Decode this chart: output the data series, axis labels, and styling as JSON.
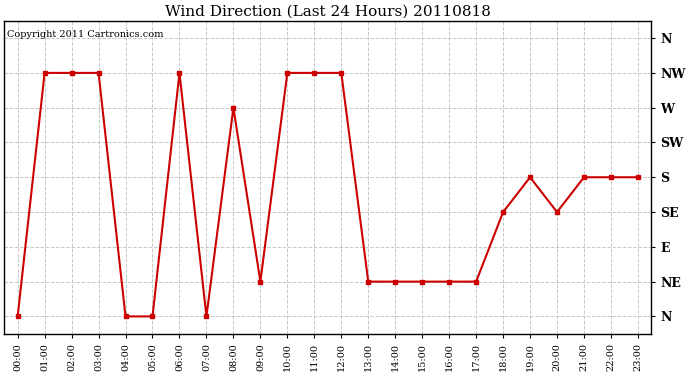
{
  "title": "Wind Direction (Last 24 Hours) 20110818",
  "copyright": "Copyright 2011 Cartronics.com",
  "background_color": "#ffffff",
  "plot_bg_color": "#ffffff",
  "grid_color": "#c8c8c8",
  "line_color": "#cc0000",
  "marker_color": "#cc0000",
  "hours": [
    0,
    1,
    2,
    3,
    4,
    5,
    6,
    7,
    8,
    9,
    10,
    11,
    12,
    13,
    14,
    15,
    16,
    17,
    18,
    19,
    20,
    21,
    22,
    23
  ],
  "directions_numeric": [
    0,
    7,
    7,
    7,
    0,
    0,
    7,
    0,
    6,
    1,
    7,
    7,
    7,
    1,
    1,
    1,
    1,
    1,
    3,
    4,
    3,
    4,
    4,
    4
  ],
  "ytick_labels": [
    "N",
    "NE",
    "E",
    "SE",
    "S",
    "SW",
    "W",
    "NW",
    "N"
  ],
  "ytick_values": [
    0,
    1,
    2,
    3,
    4,
    5,
    6,
    7,
    8
  ]
}
